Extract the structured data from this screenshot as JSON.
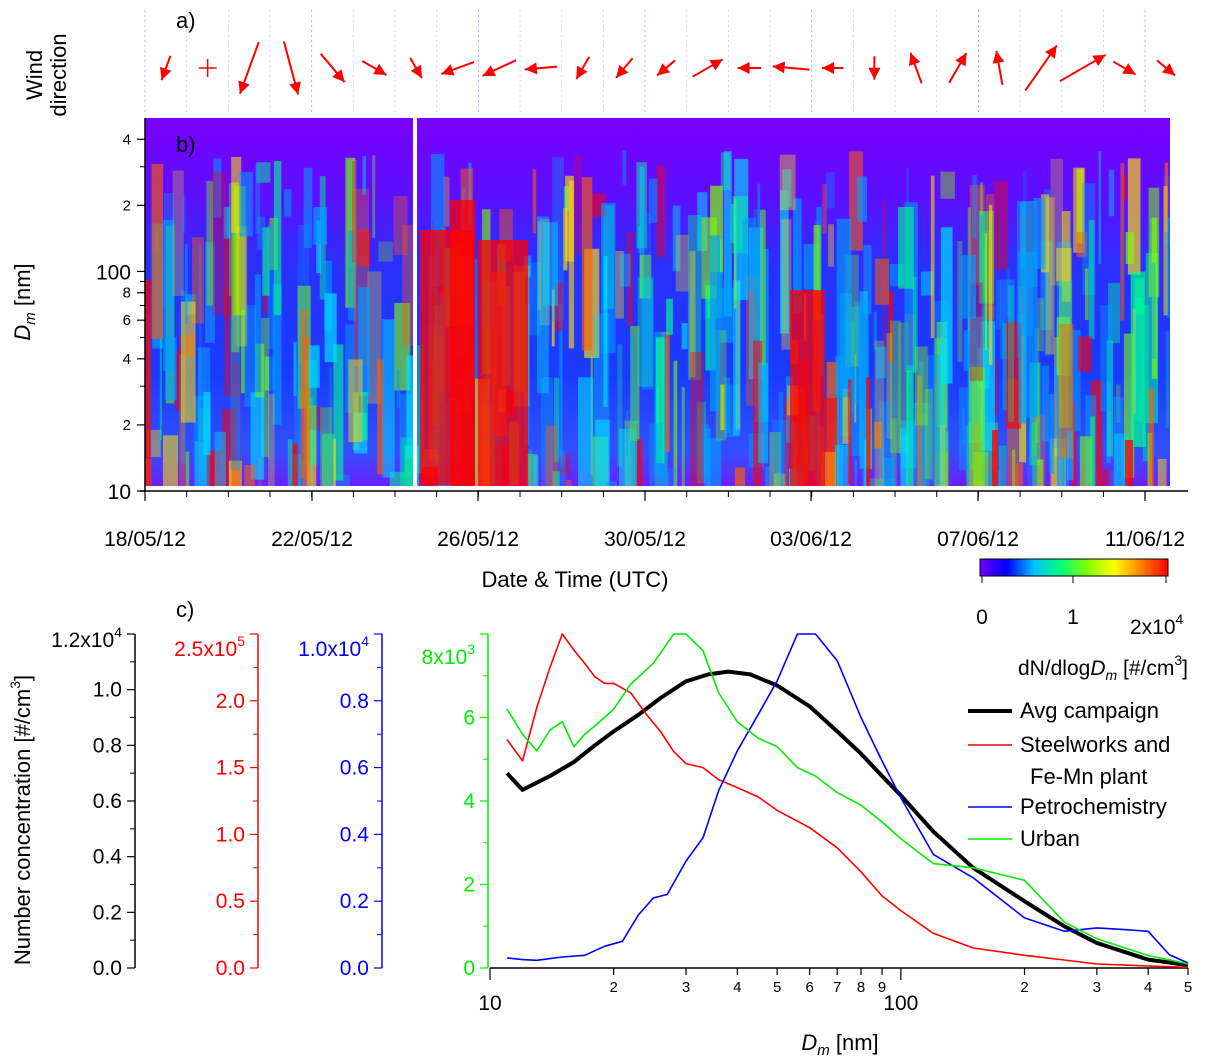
{
  "colors": {
    "wind_arrow": "#ff0000",
    "avg": "#000000",
    "steel": "#ff0000",
    "petro": "#0000ff",
    "urban": "#00ee00"
  },
  "panel_labels": {
    "a": "a)",
    "b": "b)",
    "c": "c)"
  },
  "panel_a": {
    "ylabel_line1": "Wind",
    "ylabel_line2": "direction",
    "arrows": [
      {
        "angle": 200,
        "mag": 0.35
      },
      {
        "calm": true
      },
      {
        "angle": 200,
        "mag": 1.0
      },
      {
        "angle": 165,
        "mag": 1.0
      },
      {
        "angle": 140,
        "mag": 0.6
      },
      {
        "angle": 120,
        "mag": 0.4
      },
      {
        "angle": 150,
        "mag": 0.3
      },
      {
        "angle": 250,
        "mag": 0.55
      },
      {
        "angle": 245,
        "mag": 0.6
      },
      {
        "angle": 265,
        "mag": 0.5
      },
      {
        "angle": 210,
        "mag": 0.35
      },
      {
        "angle": 220,
        "mag": 0.35
      },
      {
        "angle": 230,
        "mag": 0.3
      },
      {
        "angle": 60,
        "mag": 0.55
      },
      {
        "angle": 270,
        "mag": 0.3
      },
      {
        "angle": 275,
        "mag": 0.6
      },
      {
        "angle": 270,
        "mag": 0.25
      },
      {
        "angle": 180,
        "mag": 0.3
      },
      {
        "angle": 340,
        "mag": 0.5
      },
      {
        "angle": 30,
        "mag": 0.55
      },
      {
        "angle": 350,
        "mag": 0.55
      },
      {
        "angle": 35,
        "mag": 1.0
      },
      {
        "angle": 60,
        "mag": 0.95
      },
      {
        "angle": 120,
        "mag": 0.35
      },
      {
        "angle": 130,
        "mag": 0.3
      }
    ]
  },
  "panel_b": {
    "ylabel": "D",
    "ylabel_sub": "m",
    "ylabel_unit": " [nm]",
    "xlabel": "Date & Time (UTC)",
    "x_ticks": [
      "18/05/12",
      "22/05/12",
      "26/05/12",
      "30/05/12",
      "03/06/12",
      "07/06/12",
      "11/06/12"
    ],
    "y_ticks": [
      {
        "v": 10,
        "t": "10"
      },
      {
        "v": 20,
        "t": "2"
      },
      {
        "v": 40,
        "t": "4"
      },
      {
        "v": 60,
        "t": "6"
      },
      {
        "v": 80,
        "t": "8"
      },
      {
        "v": 100,
        "t": "100"
      },
      {
        "v": 200,
        "t": "2"
      },
      {
        "v": 400,
        "t": "4"
      }
    ],
    "colorbar": {
      "ticks": [
        "0",
        "1",
        "2x10"
      ],
      "exp": "4",
      "label_pre": "dN/dlog",
      "label_d": "D",
      "label_sub": "m",
      "label_post": " [#/cm",
      "label_sup": "3",
      "label_end": "]",
      "stops": [
        "#7000ff",
        "#0000ff",
        "#00c0ff",
        "#00ff80",
        "#80ff00",
        "#ffff00",
        "#ff8000",
        "#ff0000"
      ]
    }
  },
  "chart_data": {
    "type": "line",
    "xlabel": "D",
    "xlabel_sub": "m",
    "xlabel_unit": " [nm]",
    "x_scale": "log",
    "xlim": [
      10,
      500
    ],
    "x_ticks": [
      {
        "v": 10,
        "t": "10"
      },
      {
        "v": 20,
        "t": "2"
      },
      {
        "v": 30,
        "t": "3"
      },
      {
        "v": 40,
        "t": "4"
      },
      {
        "v": 50,
        "t": "5"
      },
      {
        "v": 60,
        "t": "6"
      },
      {
        "v": 70,
        "t": "7"
      },
      {
        "v": 80,
        "t": "8"
      },
      {
        "v": 90,
        "t": "9"
      },
      {
        "v": 100,
        "t": "100"
      },
      {
        "v": 200,
        "t": "2"
      },
      {
        "v": 300,
        "t": "3"
      },
      {
        "v": 400,
        "t": "4"
      },
      {
        "v": 500,
        "t": "5"
      }
    ],
    "ylabel": "Number concentration [#/cm",
    "ylabel_sup": "3",
    "ylabel_end": "]",
    "axes": {
      "black": {
        "ylim": [
          0,
          12000
        ],
        "ticks": [
          "0.0",
          "0.2",
          "0.4",
          "0.6",
          "0.8",
          "1.0"
        ],
        "top": "1.2x10",
        "exp": "4"
      },
      "red": {
        "ylim": [
          0,
          250000
        ],
        "ticks": [
          "0.0",
          "0.5",
          "1.0",
          "1.5",
          "2.0"
        ],
        "top": "2.5x10",
        "exp": "5"
      },
      "blue": {
        "ylim": [
          0,
          10000
        ],
        "ticks": [
          "0.0",
          "0.2",
          "0.4",
          "0.6",
          "0.8"
        ],
        "top": "1.0x10",
        "exp": "4"
      },
      "green": {
        "ylim": [
          0,
          8000
        ],
        "ticks": [
          "0",
          "2",
          "4",
          "6"
        ],
        "top": "8x10",
        "exp": "3"
      }
    },
    "legend": [
      {
        "name": "Avg campaign",
        "color": "#000000",
        "width": 4
      },
      {
        "name": "Steelworks and",
        "name2": "Fe-Mn plant",
        "color": "#ff0000",
        "width": 1.5
      },
      {
        "name": "Petrochemistry",
        "color": "#0000ff",
        "width": 1.5
      },
      {
        "name": "Urban",
        "color": "#00ee00",
        "width": 1.5
      }
    ],
    "series": [
      {
        "name": "Avg campaign",
        "axis": "black",
        "x": [
          11,
          12,
          14,
          16,
          18,
          20,
          23,
          26,
          30,
          34,
          38,
          43,
          50,
          60,
          70,
          80,
          90,
          100,
          120,
          150,
          200,
          250,
          300,
          400,
          500
        ],
        "values": [
          7000,
          6400,
          6900,
          7400,
          8000,
          8500,
          9100,
          9700,
          10300,
          10550,
          10650,
          10550,
          10150,
          9400,
          8500,
          7700,
          6900,
          6200,
          4900,
          3600,
          2400,
          1500,
          900,
          300,
          100
        ]
      },
      {
        "name": "Steelworks and Fe-Mn plant",
        "axis": "red",
        "x": [
          11,
          12,
          13,
          14,
          15,
          16,
          17,
          18,
          19,
          20,
          22,
          24,
          26,
          28,
          30,
          33,
          36,
          40,
          45,
          50,
          60,
          70,
          80,
          90,
          100,
          120,
          150,
          200,
          250,
          300,
          400,
          500
        ],
        "values": [
          171000,
          155000,
          195000,
          225000,
          250000,
          238000,
          228000,
          218000,
          213000,
          213000,
          206000,
          190000,
          177000,
          162000,
          153000,
          150000,
          141000,
          135000,
          128000,
          118000,
          105000,
          90000,
          72000,
          54000,
          43000,
          26000,
          15000,
          9500,
          6000,
          3000,
          1500,
          500
        ]
      },
      {
        "name": "Petrochemistry",
        "axis": "blue",
        "x": [
          11,
          12,
          13,
          14,
          15,
          17,
          19,
          21,
          23,
          25,
          27,
          30,
          33,
          36,
          40,
          45,
          50,
          56,
          62,
          70,
          80,
          90,
          100,
          120,
          150,
          200,
          250,
          300,
          350,
          400,
          450,
          500
        ],
        "values": [
          300,
          250,
          230,
          280,
          330,
          380,
          650,
          800,
          1600,
          2100,
          2200,
          3200,
          3900,
          5300,
          6500,
          7600,
          8600,
          10000,
          10000,
          9200,
          7500,
          6200,
          5100,
          3400,
          2700,
          1500,
          1100,
          1200,
          1150,
          1100,
          400,
          150
        ]
      },
      {
        "name": "Urban",
        "axis": "green",
        "x": [
          11,
          12,
          13,
          14,
          15,
          16,
          17,
          18,
          19,
          20,
          22,
          25,
          28,
          30,
          33,
          36,
          40,
          45,
          50,
          56,
          62,
          70,
          80,
          90,
          100,
          120,
          150,
          200,
          250,
          300,
          400,
          500
        ],
        "values": [
          6200,
          5600,
          5200,
          5700,
          5900,
          5300,
          5600,
          5800,
          6000,
          6200,
          6800,
          7300,
          8000,
          8000,
          7600,
          6600,
          5900,
          5500,
          5300,
          4800,
          4600,
          4200,
          3900,
          3500,
          3100,
          2500,
          2400,
          2100,
          1100,
          700,
          300,
          100
        ]
      }
    ]
  }
}
